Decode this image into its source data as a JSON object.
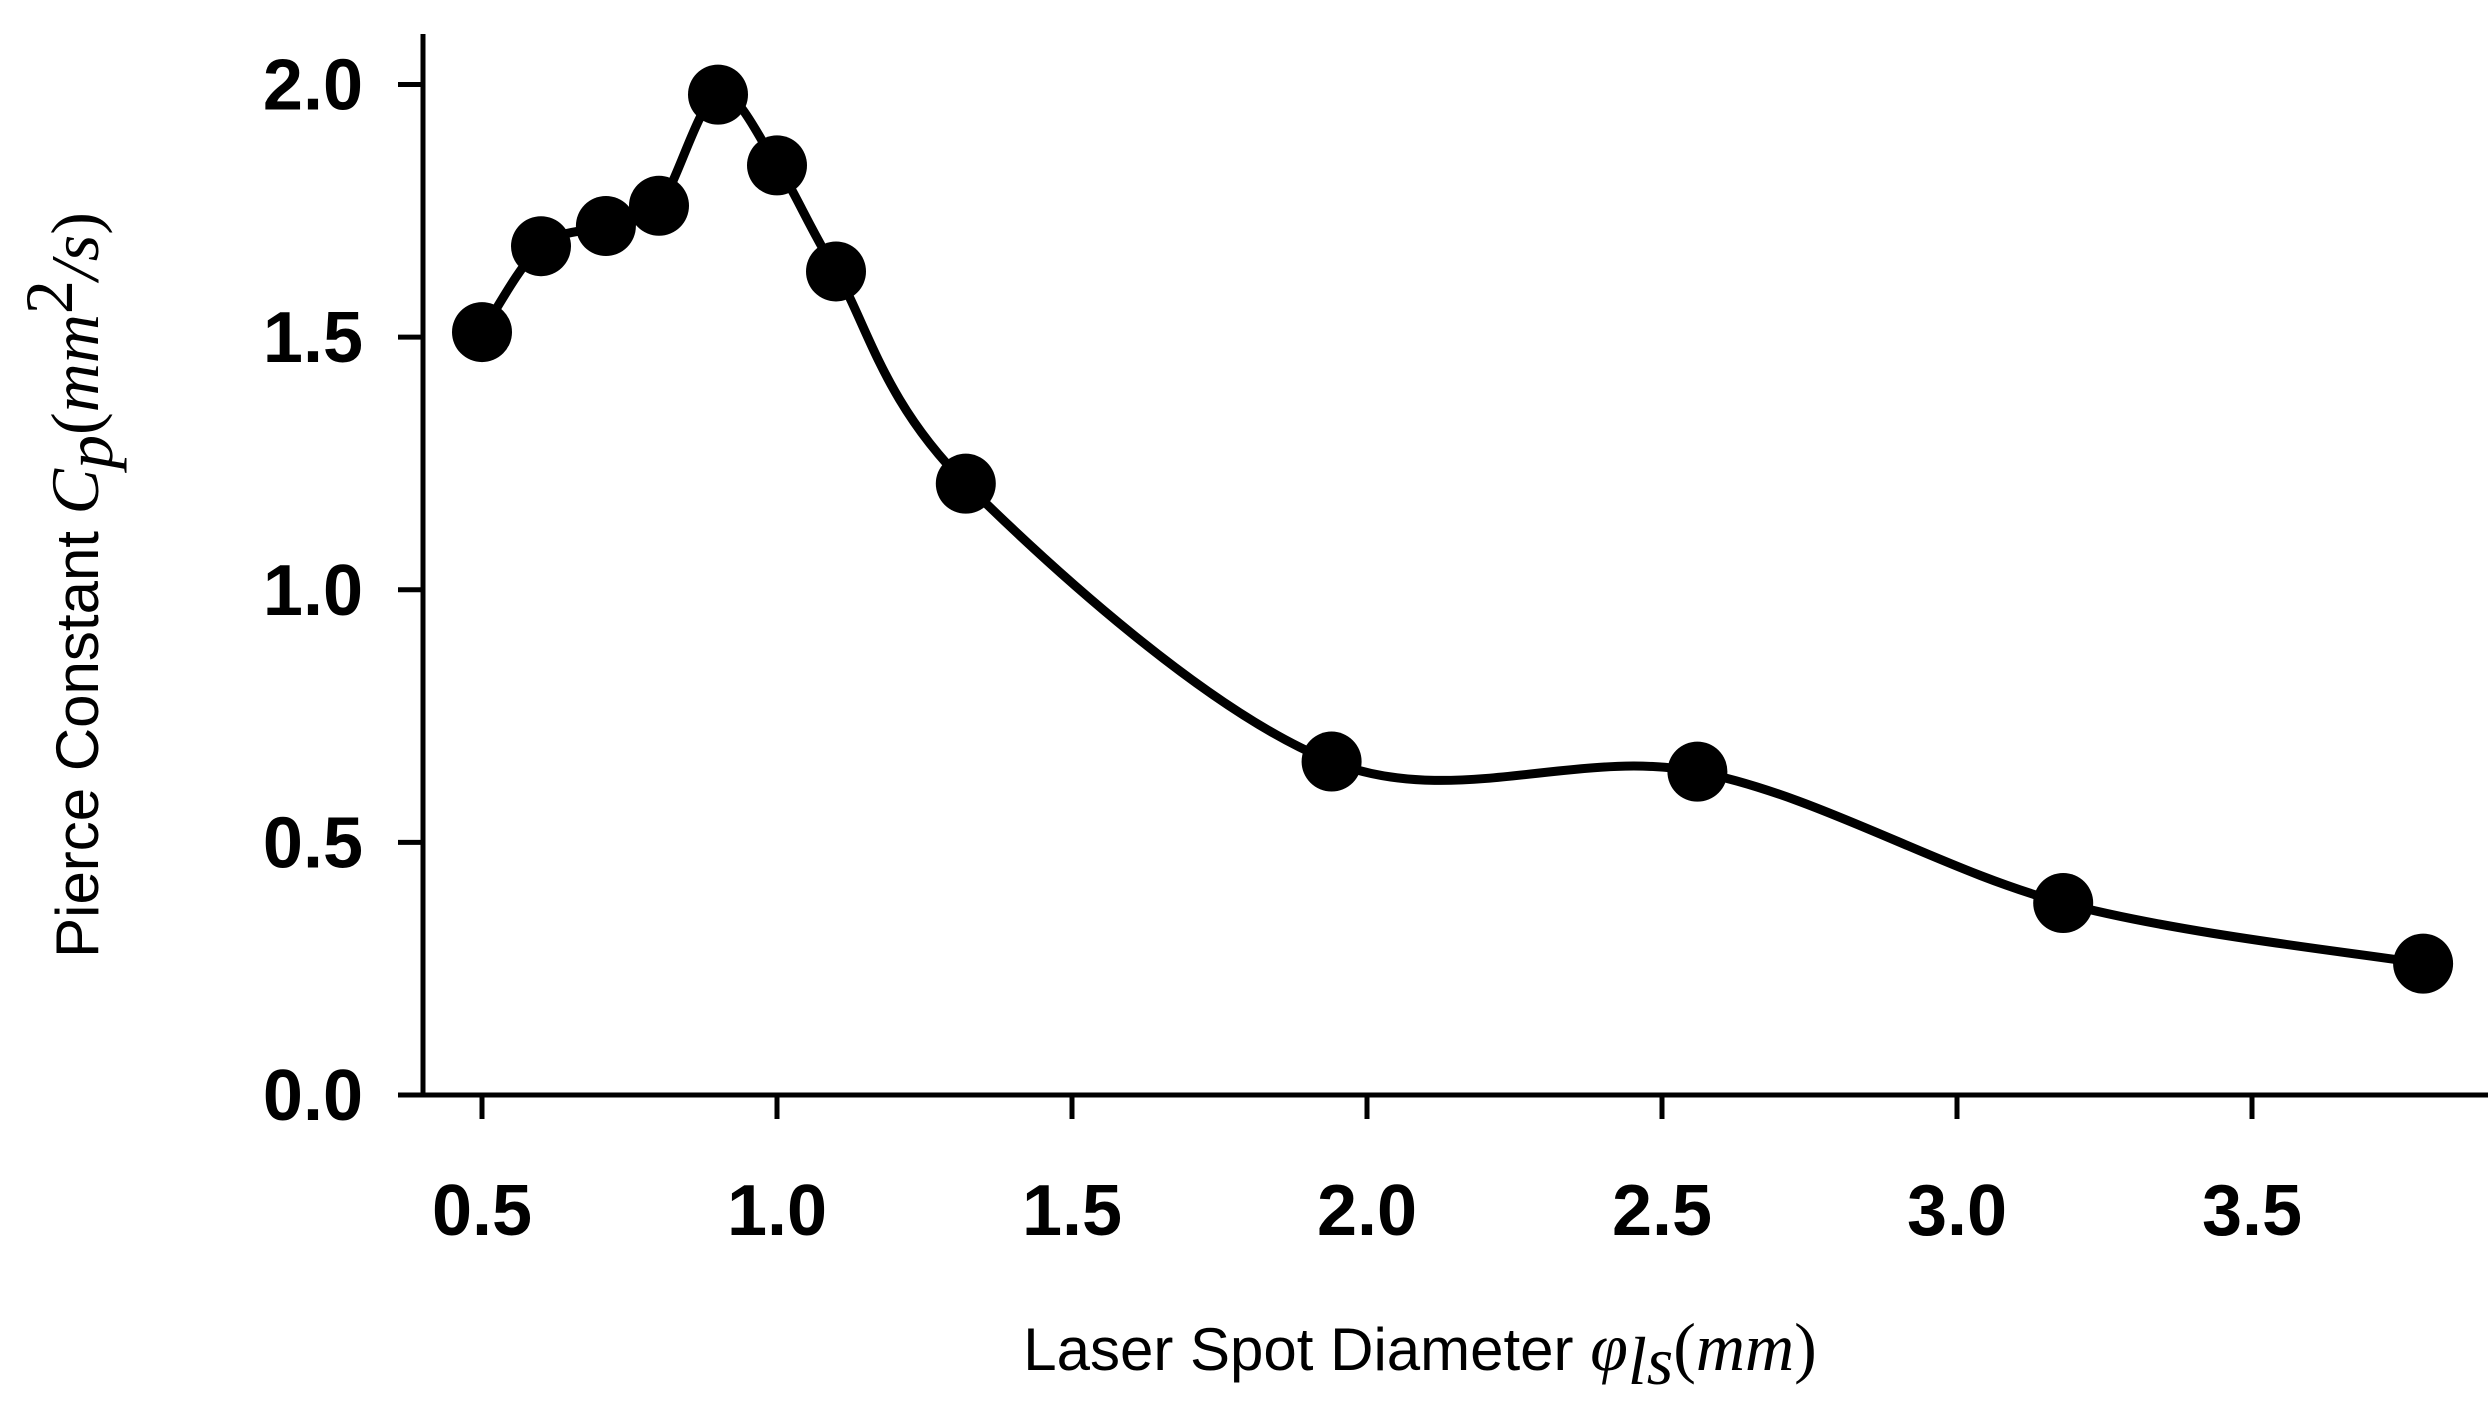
{
  "chart_data": {
    "type": "line",
    "title": "",
    "x": [
      0.5,
      0.6,
      0.71,
      0.8,
      0.9,
      1.0,
      1.1,
      1.32,
      1.94,
      2.56,
      3.18,
      3.79
    ],
    "series": [
      {
        "values": [
          1.51,
          1.68,
          1.72,
          1.76,
          1.98,
          1.84,
          1.63,
          1.21,
          0.66,
          0.64,
          0.38,
          0.26
        ]
      }
    ],
    "xlim": [
      0.4,
      3.9
    ],
    "ylim": [
      0,
      2.1
    ],
    "xticks": [
      "0.5",
      "1.0",
      "1.5",
      "2.0",
      "2.5",
      "3.0",
      "3.5"
    ],
    "yticks": [
      "0.0",
      "0.5",
      "1.0",
      "1.5",
      "2.0"
    ],
    "xlabel": {
      "text": "Laser Spot Diameter",
      "symbol": "φ",
      "subscript": "ls",
      "open_paren": "(",
      "unit": "mm",
      "close_paren": ")"
    },
    "ylabel": {
      "text": "Pierce Constant",
      "symbol": "C",
      "subscript": "p",
      "open_paren": "(",
      "unit": "mm",
      "superscript": "2",
      "unit_rest": "/s",
      "close_paren": ")"
    },
    "grid": false,
    "line_color": "#000000",
    "marker_color": "#000000"
  }
}
